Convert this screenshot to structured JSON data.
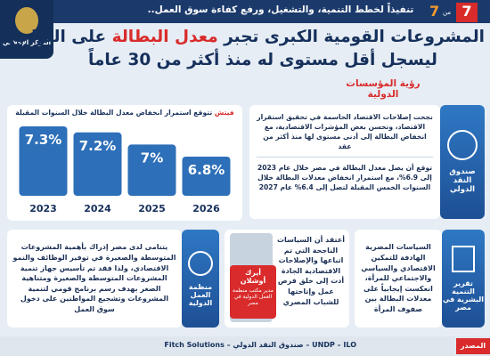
{
  "header": {
    "tagline": "تنفيذاً لخطط التنمية، والتشغيل، ورفع كفاءة سوق العمل..",
    "page": "7",
    "of": "من",
    "total": "7",
    "logo": "المركز الإعلامي"
  },
  "title_line1": [
    "المشروعات القومية الكبرى تجبر",
    "معدل البطالة",
    "على التراجع"
  ],
  "title_line2": "ليسجل أقل مستوى له منذ أكثر من 30 عاماً",
  "subtitle": "رؤية المؤسسات الدولية",
  "chart_data": {
    "type": "bar",
    "title": [
      "فيتش",
      "تتوقع استمرار انخفاض معدل البطالة خلال السنوات المقبلة"
    ],
    "categories": [
      "2023",
      "2024",
      "2025",
      "2026"
    ],
    "values": [
      7.3,
      7.2,
      7,
      6.8
    ],
    "value_labels": [
      "7.3%",
      "7.2%",
      "7%",
      "6.8%"
    ],
    "color": "#2d6fb8"
  },
  "imf": {
    "label": "صندوق النقد الدولي",
    "text1": "نجحت إصلاحات الاقتصاد الحاسمة في تحقيق استقرار الاقتصاد، وتحسن بعض المؤشرات الاقتصادية، مع انخفاض البطالة إلى أدنى مستوى لها منذ أكثر من عقد",
    "text2": "توقع أن يصل معدل البطالة في مصر خلال عام 2023 إلى 6.9%، مع استمرار انخفاض معدلات البطالة خلال السنوات الخمس المقبلة لتصل إلى 6.4% عام 2027"
  },
  "ilo": {
    "label": "منظمة العمل الدولية",
    "text": "يتنامى لدى مصر إدراك بأهمية المشروعات المتوسطة والصغيرة في توفير الوظائف والنمو الاقتصادي، ولذا فقد تم تأسيس جهاز تنمية المشروعات المتوسطة والصغيرة ومتناهية الصغر بهدف رسم برنامج قومي لتنمية المشروعات وتشجيع المواطنين على دخول سوق العمل"
  },
  "quote": {
    "text": "أعتقد أن السياسات الناجحة التي تم اتباعها والإصلاحات الاقتصادية الجادة أدت إلى خلق فرص عمل وإتاحتها للشباب المصري",
    "name": "أيرك أوشلان",
    "role": "مدير مكتب منظمة العمل الدولية في مصر"
  },
  "undp": {
    "label": "تقرير التنمية البشرية في مصر",
    "text": "السياسات المصرية الهادفة للتمكين الاقتصادي والسياسي والاجتماعي للمرأة، انعكست إيجابياً على معدلات البطالة بين صفوف المرأة"
  },
  "footer": {
    "label": "المصدر",
    "sources": "UNDP – ILO – صندوق النقد الدولي – Fitch Solutions"
  }
}
